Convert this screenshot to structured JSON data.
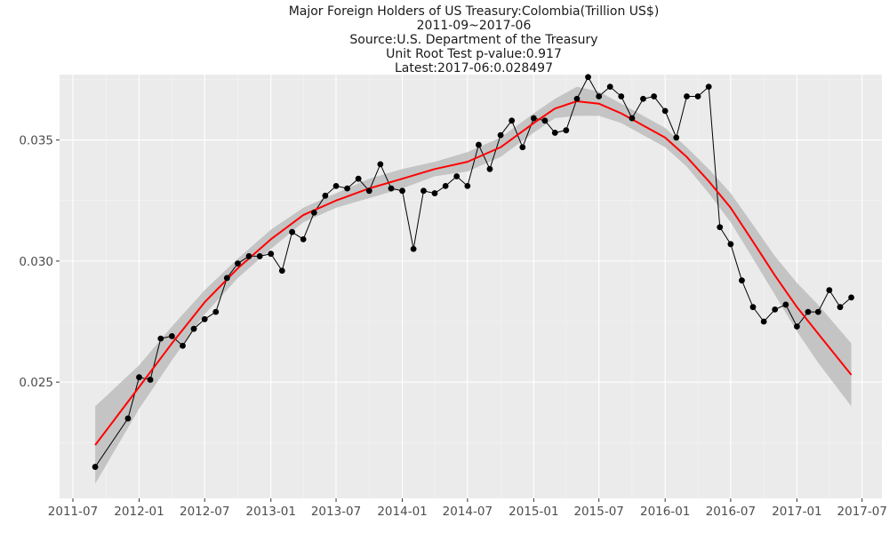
{
  "colors": {
    "panel": "#ebebeb",
    "grid_major": "#ffffff",
    "grid_minor": "#f5f5f5",
    "series": "#000000",
    "trend": "#ff0000",
    "band": "#bdbdbd"
  },
  "chart_data": {
    "type": "line",
    "title": [
      "Major Foreign Holders of US Treasury:Colombia(Trillion US$)",
      "2011-09~2017-06",
      "Source:U.S. Department of the Treasury",
      "Unit Root Test p-value:0.917",
      "Latest:2017-06:0.028497"
    ],
    "xlabel": "",
    "ylabel": "",
    "grid": true,
    "xlim": [
      "2011-05-25",
      "2017-08-25"
    ],
    "ylim": [
      0.0202,
      0.0377
    ],
    "x_ticks": [
      "2011-07",
      "2012-01",
      "2012-07",
      "2013-01",
      "2013-07",
      "2014-01",
      "2014-07",
      "2015-01",
      "2015-07",
      "2016-01",
      "2016-07",
      "2017-01",
      "2017-07"
    ],
    "y_ticks": [
      {
        "value": 0.025,
        "label": "0.025"
      },
      {
        "value": 0.03,
        "label": "0.030"
      },
      {
        "value": 0.035,
        "label": "0.035"
      }
    ],
    "series": [
      {
        "kind": "line+points",
        "x": [
          "2011-09",
          "2011-12",
          "2012-01",
          "2012-02",
          "2012-03",
          "2012-04",
          "2012-05",
          "2012-06",
          "2012-07",
          "2012-08",
          "2012-09",
          "2012-10",
          "2012-11",
          "2012-12",
          "2013-01",
          "2013-02",
          "2013-03",
          "2013-04",
          "2013-05",
          "2013-06",
          "2013-07",
          "2013-08",
          "2013-09",
          "2013-10",
          "2013-11",
          "2013-12",
          "2014-01",
          "2014-02",
          "2014-03",
          "2014-04",
          "2014-05",
          "2014-06",
          "2014-07",
          "2014-08",
          "2014-09",
          "2014-10",
          "2014-11",
          "2014-12",
          "2015-01",
          "2015-02",
          "2015-03",
          "2015-04",
          "2015-05",
          "2015-06",
          "2015-07",
          "2015-08",
          "2015-09",
          "2015-10",
          "2015-11",
          "2015-12",
          "2016-01",
          "2016-02",
          "2016-03",
          "2016-04",
          "2016-05",
          "2016-06",
          "2016-07",
          "2016-08",
          "2016-09",
          "2016-10",
          "2016-11",
          "2016-12",
          "2017-01",
          "2017-02",
          "2017-03",
          "2017-04",
          "2017-05",
          "2017-06"
        ],
        "values": [
          0.0215,
          0.0235,
          0.0252,
          0.0251,
          0.0268,
          0.0269,
          0.0265,
          0.0272,
          0.0276,
          0.0279,
          0.0293,
          0.0299,
          0.0302,
          0.0302,
          0.0303,
          0.0296,
          0.0312,
          0.0309,
          0.032,
          0.0327,
          0.0331,
          0.033,
          0.0334,
          0.0329,
          0.034,
          0.033,
          0.0329,
          0.0305,
          0.0329,
          0.0328,
          0.0331,
          0.0335,
          0.0331,
          0.0348,
          0.0338,
          0.0352,
          0.0358,
          0.0347,
          0.0359,
          0.0358,
          0.0353,
          0.0354,
          0.0367,
          0.0376,
          0.0368,
          0.0372,
          0.0368,
          0.0359,
          0.0367,
          0.0368,
          0.0362,
          0.0351,
          0.0368,
          0.0368,
          0.0372,
          0.0314,
          0.0307,
          0.0292,
          0.0281,
          0.0275,
          0.028,
          0.0282,
          0.0273,
          0.0279,
          0.0279,
          0.0288,
          0.0281,
          0.028497
        ]
      },
      {
        "kind": "smooth",
        "x": [
          "2011-09",
          "2012-01",
          "2012-04",
          "2012-07",
          "2012-10",
          "2013-01",
          "2013-04",
          "2013-07",
          "2013-10",
          "2014-01",
          "2014-04",
          "2014-07",
          "2014-10",
          "2015-01",
          "2015-03",
          "2015-05",
          "2015-07",
          "2015-09",
          "2015-11",
          "2016-01",
          "2016-03",
          "2016-05",
          "2016-07",
          "2016-09",
          "2016-11",
          "2017-01",
          "2017-03",
          "2017-06"
        ],
        "values": [
          0.0224,
          0.0248,
          0.0266,
          0.0283,
          0.0297,
          0.0309,
          0.0319,
          0.0325,
          0.033,
          0.0334,
          0.0338,
          0.0341,
          0.0347,
          0.0357,
          0.0363,
          0.0366,
          0.0365,
          0.0361,
          0.0356,
          0.0351,
          0.0343,
          0.0333,
          0.0322,
          0.0308,
          0.0294,
          0.0281,
          0.027,
          0.0253
        ],
        "ci_lower": [
          0.0208,
          0.0239,
          0.0259,
          0.0278,
          0.0293,
          0.0305,
          0.0316,
          0.0322,
          0.0326,
          0.033,
          0.0335,
          0.0337,
          0.0343,
          0.0353,
          0.0359,
          0.036,
          0.036,
          0.0357,
          0.0352,
          0.0347,
          0.0339,
          0.0328,
          0.0316,
          0.0301,
          0.0286,
          0.0271,
          0.0258,
          0.024
        ],
        "ci_upper": [
          0.024,
          0.0257,
          0.0273,
          0.0288,
          0.0301,
          0.0313,
          0.0322,
          0.0328,
          0.0334,
          0.0338,
          0.0341,
          0.0345,
          0.0351,
          0.0361,
          0.0367,
          0.0372,
          0.037,
          0.0365,
          0.036,
          0.0355,
          0.0347,
          0.0338,
          0.0328,
          0.0315,
          0.0302,
          0.0291,
          0.0282,
          0.0266
        ]
      }
    ]
  }
}
